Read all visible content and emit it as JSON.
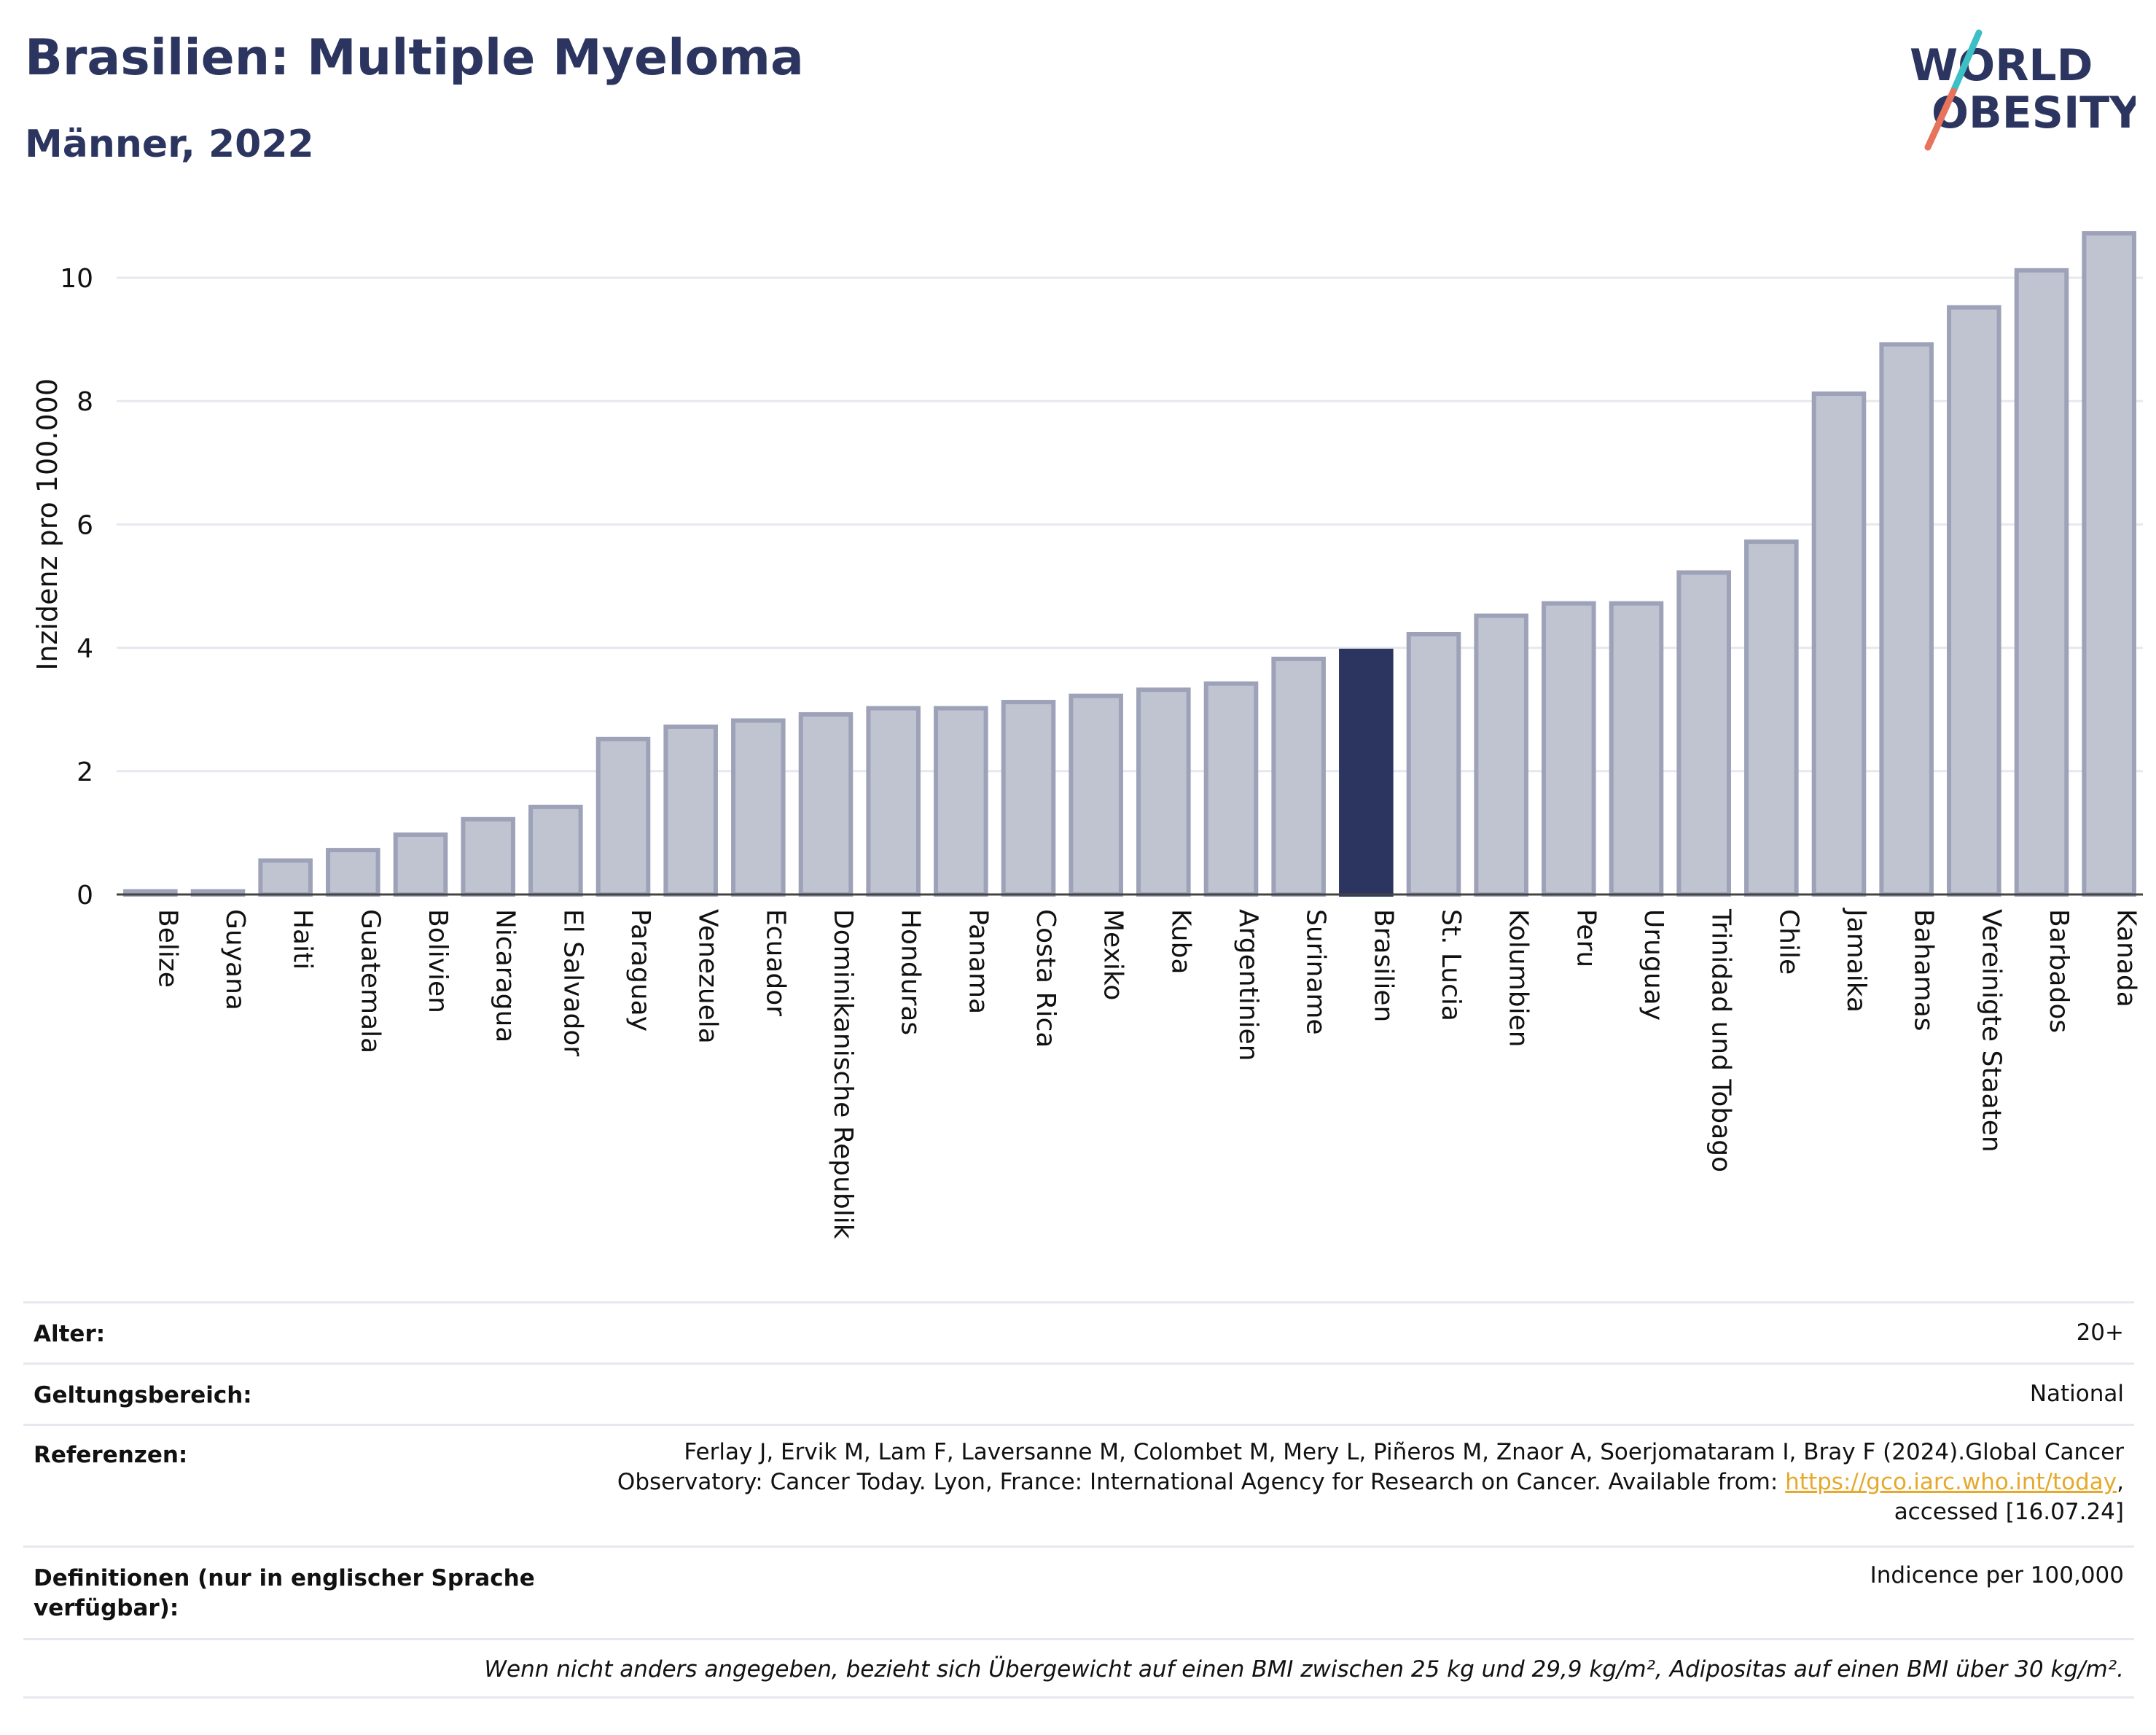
{
  "header": {
    "title": "Brasilien: Multiple Myeloma",
    "subtitle": "Männer, 2022",
    "logo_line1": "WORLD",
    "logo_line2": "OBESITY"
  },
  "chart_data": {
    "type": "bar",
    "title": "Brasilien: Multiple Myeloma",
    "subtitle": "Männer, 2022",
    "ylabel": "Inzidenz pro 100.000",
    "xlabel": "",
    "ylim": [
      0,
      11
    ],
    "yticks": [
      0,
      2,
      4,
      6,
      8,
      10
    ],
    "grid": true,
    "highlight": "Brasilien",
    "colors": {
      "bar": "#c0c3d0",
      "bar_border": "#9da2b8",
      "highlight": "#2b355f",
      "grid": "#e6e8ef",
      "axis": "#444444"
    },
    "categories": [
      "Belize",
      "Guyana",
      "Haiti",
      "Guatemala",
      "Bolivien",
      "Nicaragua",
      "El Salvador",
      "Paraguay",
      "Venezuela",
      "Ecuador",
      "Dominikanische Republik",
      "Honduras",
      "Panama",
      "Costa Rica",
      "Mexiko",
      "Kuba",
      "Argentinien",
      "Suriname",
      "Brasilien",
      "St. Lucia",
      "Kolumbien",
      "Peru",
      "Uruguay",
      "Trinidad und Tobago",
      "Chile",
      "Jamaika",
      "Bahamas",
      "Vereinigte Staaten",
      "Barbados",
      "Kanada"
    ],
    "values": [
      0.05,
      0.05,
      0.55,
      0.72,
      0.97,
      1.22,
      1.42,
      2.52,
      2.72,
      2.82,
      2.92,
      3.02,
      3.02,
      3.12,
      3.22,
      3.32,
      3.42,
      3.82,
      3.95,
      4.22,
      4.52,
      4.72,
      4.72,
      5.22,
      5.72,
      8.12,
      8.92,
      9.52,
      10.12,
      10.72
    ]
  },
  "meta": {
    "age_label": "Alter:",
    "age_value": "20+",
    "scope_label": "Geltungsbereich:",
    "scope_value": "National",
    "ref_label": "Referenzen:",
    "ref_text_1": "Ferlay J, Ervik M, Lam F, Laversanne M, Colombet M, Mery L, Piñeros M, Znaor A, Soerjomataram I, Bray F (2024).Global Cancer",
    "ref_text_2": "Observatory: Cancer Today. Lyon, France: International Agency for Research on Cancer. Available from: ",
    "ref_link": "https://gco.iarc.who.int/today",
    "ref_text_3": ",",
    "ref_text_4": "accessed [16.07.24]",
    "def_label": "Definitionen (nur in englischer Sprache verfügbar):",
    "def_value": "Indicence per 100,000",
    "note": "Wenn nicht anders angegeben, bezieht sich Übergewicht auf einen BMI zwischen 25 kg und 29,9 kg/m², Adipositas auf einen BMI über 30 kg/m²."
  }
}
